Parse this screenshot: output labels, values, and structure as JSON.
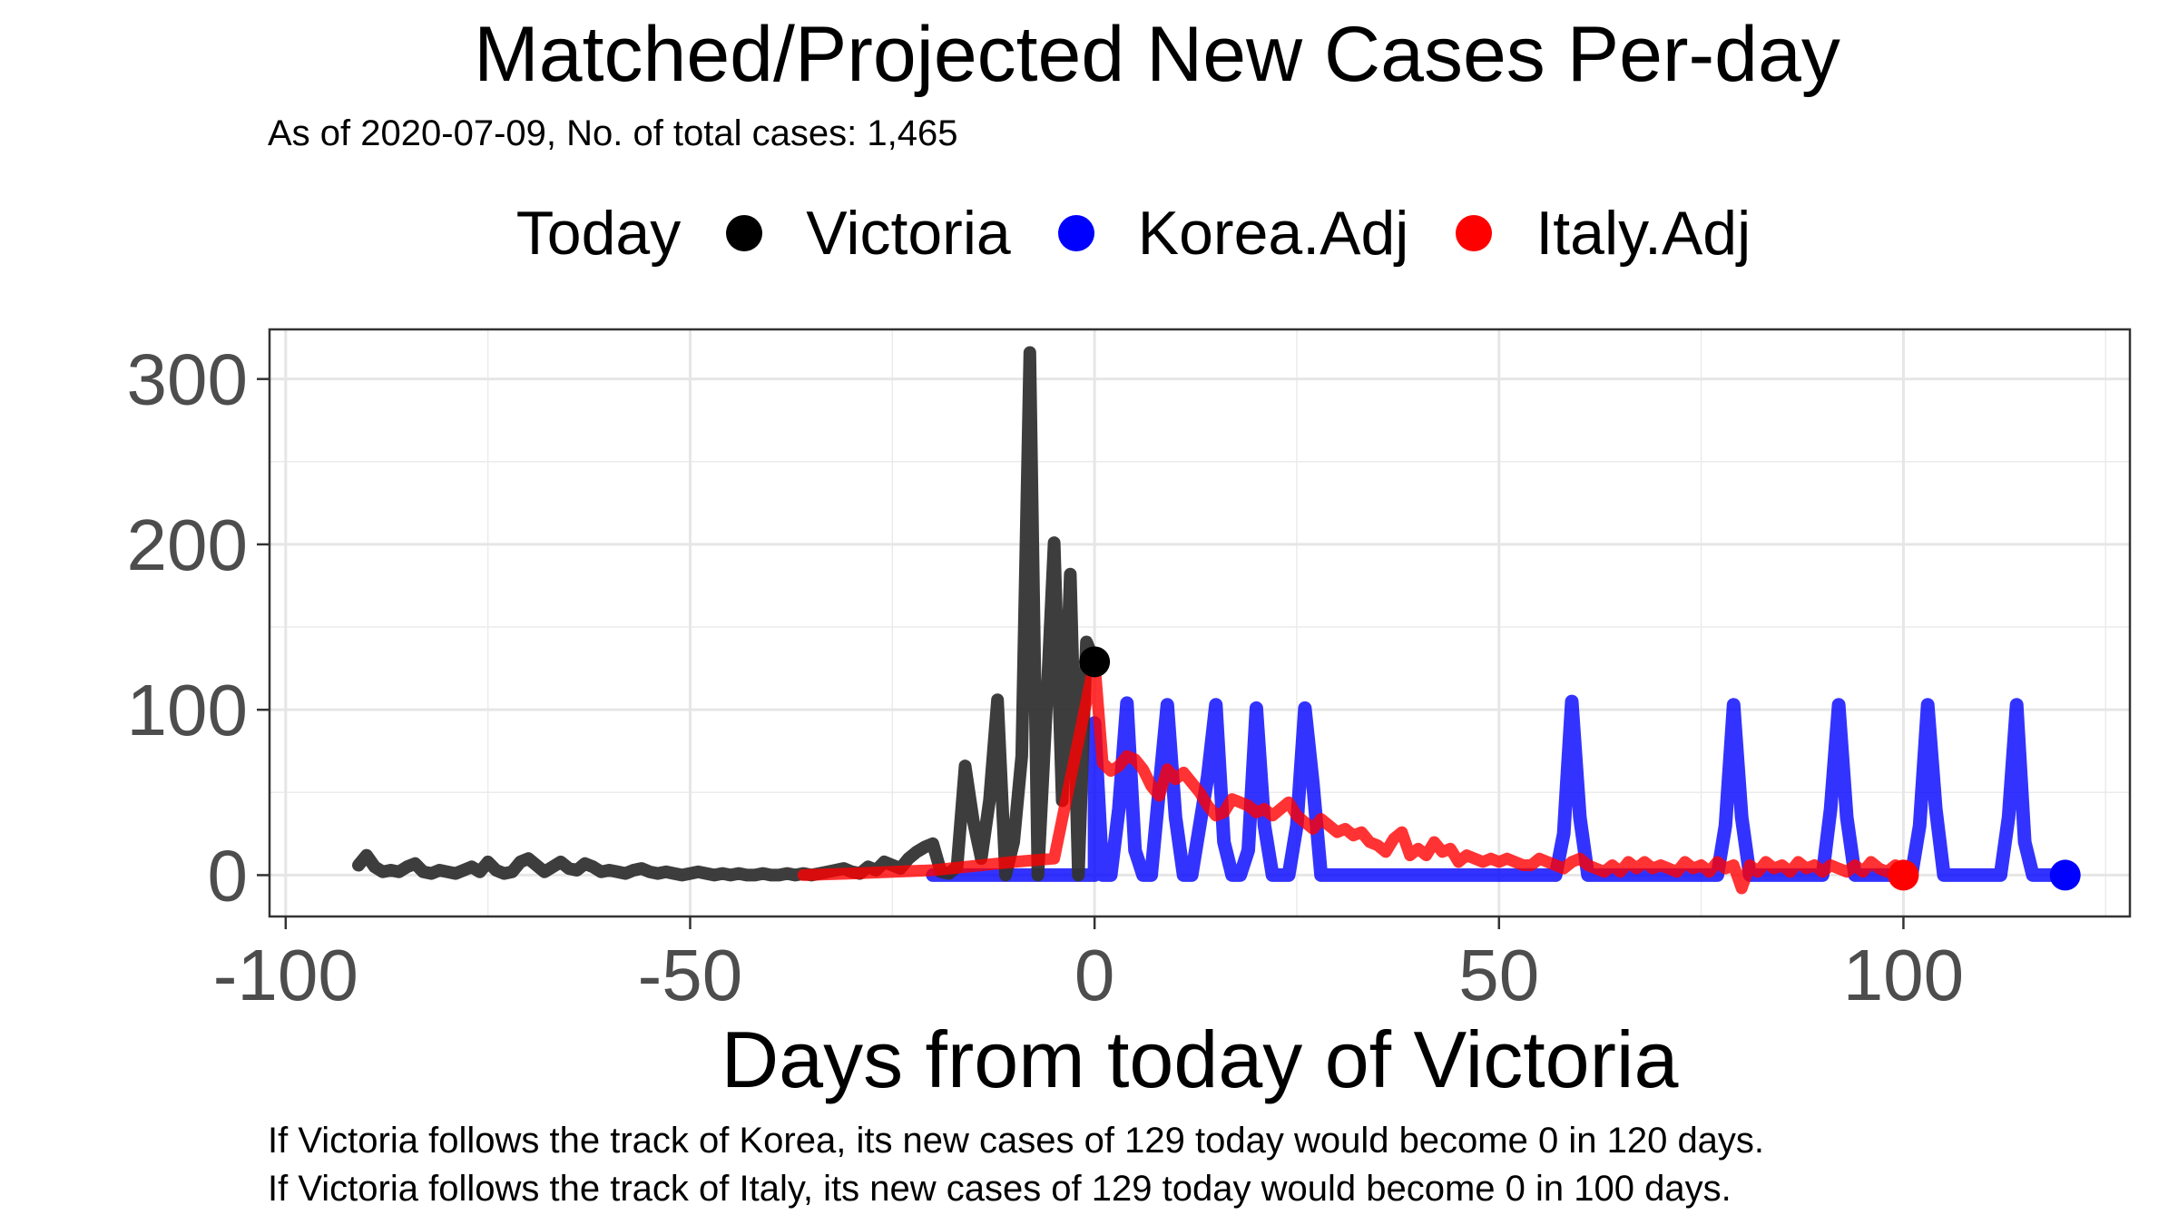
{
  "title": "Matched/Projected New Cases Per-day",
  "subtitle": "As of 2020-07-09, No. of total cases: 1,465",
  "legend": {
    "title": "Today",
    "items": [
      {
        "label": "Victoria",
        "color": "#000000"
      },
      {
        "label": "Korea.Adj",
        "color": "#0000ff"
      },
      {
        "label": "Italy.Adj",
        "color": "#ff0000"
      }
    ]
  },
  "captions": {
    "line1": "If Victoria follows the track of Korea, its new cases of 129 today would become 0 in 120 days.",
    "line2": "If Victoria follows the track of Italy, its new cases of 129 today would become 0 in 100 days."
  },
  "chart_data": {
    "type": "line",
    "xlabel": "Days from today of Victoria",
    "ylabel": "",
    "xlim": [
      -102,
      128
    ],
    "ylim": [
      -25,
      330
    ],
    "x_ticks": [
      -100,
      -50,
      0,
      50,
      100
    ],
    "y_ticks": [
      0,
      100,
      200,
      300
    ],
    "grid": true,
    "legend_position": "top",
    "series": [
      {
        "name": "Victoria",
        "color": "#333333",
        "points": [
          [
            -91,
            6
          ],
          [
            -90,
            12
          ],
          [
            -89,
            5
          ],
          [
            -88,
            2
          ],
          [
            -87,
            3
          ],
          [
            -86,
            2
          ],
          [
            -85,
            5
          ],
          [
            -84,
            7
          ],
          [
            -83,
            2
          ],
          [
            -82,
            1
          ],
          [
            -81,
            3
          ],
          [
            -80,
            2
          ],
          [
            -79,
            1
          ],
          [
            -78,
            3
          ],
          [
            -77,
            5
          ],
          [
            -76,
            2
          ],
          [
            -75,
            8
          ],
          [
            -74,
            3
          ],
          [
            -73,
            1
          ],
          [
            -72,
            2
          ],
          [
            -71,
            8
          ],
          [
            -70,
            10
          ],
          [
            -69,
            6
          ],
          [
            -68,
            2
          ],
          [
            -67,
            5
          ],
          [
            -66,
            8
          ],
          [
            -65,
            4
          ],
          [
            -64,
            3
          ],
          [
            -63,
            7
          ],
          [
            -62,
            5
          ],
          [
            -61,
            2
          ],
          [
            -60,
            3
          ],
          [
            -59,
            2
          ],
          [
            -58,
            1
          ],
          [
            -57,
            3
          ],
          [
            -56,
            4
          ],
          [
            -55,
            2
          ],
          [
            -54,
            1
          ],
          [
            -53,
            2
          ],
          [
            -52,
            1
          ],
          [
            -51,
            0
          ],
          [
            -50,
            1
          ],
          [
            -49,
            2
          ],
          [
            -48,
            1
          ],
          [
            -47,
            0
          ],
          [
            -46,
            1
          ],
          [
            -45,
            0
          ],
          [
            -44,
            1
          ],
          [
            -43,
            0
          ],
          [
            -42,
            0
          ],
          [
            -41,
            1
          ],
          [
            -40,
            0
          ],
          [
            -39,
            0
          ],
          [
            -38,
            1
          ],
          [
            -37,
            0
          ],
          [
            -36,
            1
          ],
          [
            -35,
            0
          ],
          [
            -34,
            1
          ],
          [
            -33,
            2
          ],
          [
            -32,
            3
          ],
          [
            -31,
            4
          ],
          [
            -30,
            2
          ],
          [
            -29,
            1
          ],
          [
            -28,
            5
          ],
          [
            -27,
            3
          ],
          [
            -26,
            8
          ],
          [
            -25,
            6
          ],
          [
            -24,
            4
          ],
          [
            -23,
            10
          ],
          [
            -22,
            14
          ],
          [
            -21,
            17
          ],
          [
            -20,
            19
          ],
          [
            -19,
            2
          ],
          [
            -18,
            1
          ],
          [
            -17,
            5
          ],
          [
            -16,
            66
          ],
          [
            -15,
            33
          ],
          [
            -14,
            10
          ],
          [
            -13,
            45
          ],
          [
            -12,
            106
          ],
          [
            -11,
            0
          ],
          [
            -10,
            20
          ],
          [
            -9,
            72
          ],
          [
            -8,
            316
          ],
          [
            -7,
            0
          ],
          [
            -6,
            97
          ],
          [
            -5,
            201
          ],
          [
            -4,
            45
          ],
          [
            -3,
            182
          ],
          [
            -2,
            0
          ],
          [
            -1,
            141
          ],
          [
            0,
            129
          ]
        ]
      },
      {
        "name": "Korea.Adj",
        "color": "#0000ff",
        "points": [
          [
            -20,
            0
          ],
          [
            0,
            0
          ],
          [
            0,
            92
          ],
          [
            1,
            0
          ],
          [
            2,
            0
          ],
          [
            3,
            40
          ],
          [
            4,
            104
          ],
          [
            5,
            15
          ],
          [
            6,
            0
          ],
          [
            7,
            0
          ],
          [
            8,
            52
          ],
          [
            9,
            103
          ],
          [
            10,
            35
          ],
          [
            11,
            0
          ],
          [
            12,
            0
          ],
          [
            13,
            30
          ],
          [
            14,
            60
          ],
          [
            15,
            103
          ],
          [
            16,
            20
          ],
          [
            17,
            0
          ],
          [
            18,
            0
          ],
          [
            19,
            15
          ],
          [
            20,
            101
          ],
          [
            21,
            30
          ],
          [
            22,
            0
          ],
          [
            23,
            0
          ],
          [
            24,
            0
          ],
          [
            25,
            30
          ],
          [
            26,
            101
          ],
          [
            27,
            55
          ],
          [
            28,
            0
          ],
          [
            29,
            0
          ],
          [
            55,
            0
          ],
          [
            57,
            0
          ],
          [
            58,
            25
          ],
          [
            59,
            105
          ],
          [
            60,
            35
          ],
          [
            61,
            0
          ],
          [
            62,
            0
          ],
          [
            77,
            0
          ],
          [
            78,
            30
          ],
          [
            79,
            103
          ],
          [
            80,
            35
          ],
          [
            81,
            0
          ],
          [
            82,
            0
          ],
          [
            90,
            0
          ],
          [
            91,
            40
          ],
          [
            92,
            103
          ],
          [
            93,
            35
          ],
          [
            94,
            0
          ],
          [
            95,
            0
          ],
          [
            101,
            0
          ],
          [
            102,
            30
          ],
          [
            103,
            103
          ],
          [
            104,
            40
          ],
          [
            105,
            0
          ],
          [
            106,
            0
          ],
          [
            112,
            0
          ],
          [
            113,
            35
          ],
          [
            114,
            103
          ],
          [
            115,
            20
          ],
          [
            116,
            0
          ],
          [
            120,
            0
          ]
        ]
      },
      {
        "name": "Italy.Adj",
        "color": "#ff0000",
        "points": [
          [
            -36,
            0
          ],
          [
            -30,
            1
          ],
          [
            -20,
            3
          ],
          [
            -10,
            8
          ],
          [
            -5,
            10
          ],
          [
            0,
            129
          ],
          [
            1,
            68
          ],
          [
            2,
            63
          ],
          [
            3,
            66
          ],
          [
            4,
            72
          ],
          [
            5,
            70
          ],
          [
            6,
            64
          ],
          [
            7,
            54
          ],
          [
            8,
            48
          ],
          [
            9,
            64
          ],
          [
            10,
            58
          ],
          [
            11,
            62
          ],
          [
            12,
            56
          ],
          [
            13,
            50
          ],
          [
            14,
            42
          ],
          [
            15,
            36
          ],
          [
            16,
            38
          ],
          [
            17,
            46
          ],
          [
            18,
            44
          ],
          [
            19,
            42
          ],
          [
            20,
            38
          ],
          [
            21,
            40
          ],
          [
            22,
            36
          ],
          [
            23,
            40
          ],
          [
            24,
            44
          ],
          [
            25,
            36
          ],
          [
            26,
            32
          ],
          [
            27,
            28
          ],
          [
            28,
            34
          ],
          [
            29,
            30
          ],
          [
            30,
            26
          ],
          [
            31,
            28
          ],
          [
            32,
            24
          ],
          [
            33,
            26
          ],
          [
            34,
            20
          ],
          [
            35,
            18
          ],
          [
            36,
            14
          ],
          [
            37,
            22
          ],
          [
            38,
            26
          ],
          [
            39,
            12
          ],
          [
            40,
            16
          ],
          [
            41,
            12
          ],
          [
            42,
            20
          ],
          [
            43,
            14
          ],
          [
            44,
            16
          ],
          [
            45,
            8
          ],
          [
            46,
            12
          ],
          [
            47,
            10
          ],
          [
            48,
            8
          ],
          [
            49,
            10
          ],
          [
            50,
            8
          ],
          [
            51,
            10
          ],
          [
            52,
            8
          ],
          [
            53,
            6
          ],
          [
            54,
            6
          ],
          [
            55,
            10
          ],
          [
            56,
            8
          ],
          [
            57,
            6
          ],
          [
            58,
            4
          ],
          [
            59,
            8
          ],
          [
            60,
            10
          ],
          [
            61,
            6
          ],
          [
            62,
            4
          ],
          [
            63,
            2
          ],
          [
            64,
            6
          ],
          [
            65,
            2
          ],
          [
            66,
            8
          ],
          [
            67,
            4
          ],
          [
            68,
            8
          ],
          [
            69,
            4
          ],
          [
            70,
            6
          ],
          [
            71,
            4
          ],
          [
            72,
            2
          ],
          [
            73,
            8
          ],
          [
            74,
            4
          ],
          [
            75,
            6
          ],
          [
            76,
            2
          ],
          [
            77,
            8
          ],
          [
            78,
            4
          ],
          [
            79,
            6
          ],
          [
            80,
            -8
          ],
          [
            81,
            6
          ],
          [
            82,
            2
          ],
          [
            83,
            8
          ],
          [
            84,
            4
          ],
          [
            85,
            6
          ],
          [
            86,
            2
          ],
          [
            87,
            8
          ],
          [
            88,
            4
          ],
          [
            89,
            6
          ],
          [
            90,
            2
          ],
          [
            91,
            6
          ],
          [
            92,
            4
          ],
          [
            93,
            2
          ],
          [
            94,
            6
          ],
          [
            95,
            2
          ],
          [
            96,
            8
          ],
          [
            97,
            4
          ],
          [
            98,
            2
          ],
          [
            99,
            6
          ],
          [
            100,
            0
          ]
        ]
      }
    ],
    "today_markers": [
      {
        "series": "Victoria",
        "x": 0,
        "y": 129
      },
      {
        "series": "Korea.Adj",
        "x": 120,
        "y": 0
      },
      {
        "series": "Italy.Adj",
        "x": 100,
        "y": 0
      }
    ]
  }
}
